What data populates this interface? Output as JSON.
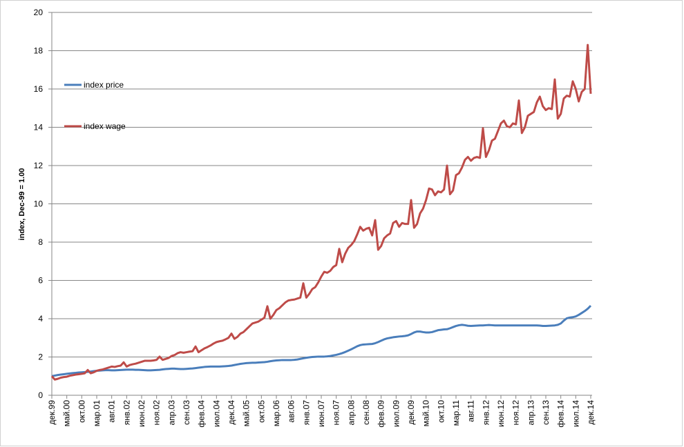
{
  "chart_data": {
    "type": "line",
    "y_label": "index, Dec-99 = 1.00",
    "categories": [
      "дек.99",
      null,
      null,
      null,
      null,
      "май.00",
      null,
      null,
      null,
      null,
      "окт.00",
      null,
      null,
      null,
      null,
      "мар.01",
      null,
      null,
      null,
      null,
      "авг.01",
      null,
      null,
      null,
      null,
      "янв.02",
      null,
      null,
      null,
      null,
      "июн.02",
      null,
      null,
      null,
      null,
      "ноя.02",
      null,
      null,
      null,
      null,
      "апр.03",
      null,
      null,
      null,
      null,
      "сен.03",
      null,
      null,
      null,
      null,
      "фев.04",
      null,
      null,
      null,
      null,
      "июл.04",
      null,
      null,
      null,
      null,
      "дек.04",
      null,
      null,
      null,
      null,
      "май.05",
      null,
      null,
      null,
      null,
      "окт.05",
      null,
      null,
      null,
      null,
      "мар.06",
      null,
      null,
      null,
      null,
      "авг.06",
      null,
      null,
      null,
      null,
      "янв.07",
      null,
      null,
      null,
      null,
      "июн.07",
      null,
      null,
      null,
      null,
      "ноя.07",
      null,
      null,
      null,
      null,
      "апр.08",
      null,
      null,
      null,
      null,
      "сен.08",
      null,
      null,
      null,
      null,
      "фев.09",
      null,
      null,
      null,
      null,
      "июл.09",
      null,
      null,
      null,
      null,
      "дек.09",
      null,
      null,
      null,
      null,
      "май.10",
      null,
      null,
      null,
      null,
      "окт.10",
      null,
      null,
      null,
      null,
      "мар.11",
      null,
      null,
      null,
      null,
      "авг.11",
      null,
      null,
      null,
      null,
      "янв.12",
      null,
      null,
      null,
      null,
      "июн.12",
      null,
      null,
      null,
      null,
      "ноя.12",
      null,
      null,
      null,
      null,
      "апр.13",
      null,
      null,
      null,
      null,
      "сен.13",
      null,
      null,
      null,
      null,
      "фев.14",
      null,
      null,
      null,
      null,
      "июл.14",
      null,
      null,
      null,
      null,
      "дек.14"
    ],
    "series": [
      {
        "name": "index price",
        "color": "#4a7ebb",
        "values": [
          1.0,
          1.03,
          1.06,
          1.08,
          1.1,
          1.12,
          1.14,
          1.16,
          1.17,
          1.19,
          1.2,
          1.21,
          1.22,
          1.24,
          1.26,
          1.28,
          1.29,
          1.3,
          1.31,
          1.31,
          1.3,
          1.3,
          1.31,
          1.32,
          1.33,
          1.34,
          1.34,
          1.34,
          1.33,
          1.33,
          1.32,
          1.31,
          1.3,
          1.3,
          1.31,
          1.32,
          1.33,
          1.35,
          1.37,
          1.38,
          1.39,
          1.39,
          1.38,
          1.37,
          1.37,
          1.38,
          1.39,
          1.4,
          1.42,
          1.44,
          1.46,
          1.48,
          1.49,
          1.5,
          1.5,
          1.5,
          1.5,
          1.51,
          1.52,
          1.53,
          1.55,
          1.58,
          1.61,
          1.64,
          1.66,
          1.68,
          1.69,
          1.7,
          1.7,
          1.71,
          1.72,
          1.73,
          1.75,
          1.78,
          1.8,
          1.82,
          1.83,
          1.84,
          1.84,
          1.84,
          1.84,
          1.85,
          1.87,
          1.9,
          1.93,
          1.96,
          1.98,
          2.0,
          2.01,
          2.02,
          2.02,
          2.02,
          2.03,
          2.05,
          2.08,
          2.11,
          2.15,
          2.2,
          2.26,
          2.33,
          2.4,
          2.48,
          2.56,
          2.62,
          2.65,
          2.66,
          2.67,
          2.68,
          2.72,
          2.78,
          2.85,
          2.92,
          2.97,
          3.0,
          3.03,
          3.05,
          3.07,
          3.08,
          3.1,
          3.13,
          3.2,
          3.28,
          3.33,
          3.33,
          3.3,
          3.28,
          3.28,
          3.3,
          3.35,
          3.4,
          3.42,
          3.44,
          3.45,
          3.5,
          3.56,
          3.62,
          3.66,
          3.68,
          3.66,
          3.63,
          3.62,
          3.63,
          3.64,
          3.65,
          3.65,
          3.66,
          3.67,
          3.66,
          3.65,
          3.65,
          3.65,
          3.65,
          3.65,
          3.65,
          3.65,
          3.65,
          3.65,
          3.65,
          3.65,
          3.65,
          3.65,
          3.65,
          3.65,
          3.64,
          3.62,
          3.62,
          3.63,
          3.64,
          3.65,
          3.68,
          3.75,
          3.9,
          4.02,
          4.06,
          4.08,
          4.12,
          4.2,
          4.3,
          4.4,
          4.52,
          4.68
        ]
      },
      {
        "name": "index wage",
        "color": "#be4b48",
        "values": [
          1.0,
          0.82,
          0.86,
          0.92,
          0.95,
          0.97,
          1.02,
          1.05,
          1.08,
          1.1,
          1.12,
          1.15,
          1.32,
          1.15,
          1.2,
          1.28,
          1.32,
          1.35,
          1.4,
          1.45,
          1.5,
          1.48,
          1.52,
          1.55,
          1.72,
          1.5,
          1.58,
          1.62,
          1.65,
          1.7,
          1.75,
          1.8,
          1.8,
          1.8,
          1.82,
          1.85,
          2.02,
          1.85,
          1.9,
          1.95,
          2.05,
          2.1,
          2.2,
          2.25,
          2.22,
          2.25,
          2.28,
          2.3,
          2.55,
          2.25,
          2.35,
          2.45,
          2.52,
          2.6,
          2.7,
          2.78,
          2.82,
          2.85,
          2.92,
          3.0,
          3.22,
          2.95,
          3.05,
          3.22,
          3.3,
          3.45,
          3.6,
          3.75,
          3.8,
          3.85,
          3.95,
          4.05,
          4.65,
          4.0,
          4.2,
          4.45,
          4.55,
          4.7,
          4.85,
          4.95,
          4.98,
          5.0,
          5.05,
          5.1,
          5.85,
          5.1,
          5.3,
          5.55,
          5.65,
          5.9,
          6.2,
          6.45,
          6.4,
          6.5,
          6.7,
          6.8,
          7.65,
          6.95,
          7.4,
          7.7,
          7.85,
          8.05,
          8.4,
          8.8,
          8.6,
          8.7,
          8.75,
          8.35,
          9.15,
          7.6,
          7.8,
          8.2,
          8.35,
          8.45,
          9.0,
          9.1,
          8.8,
          9.0,
          8.95,
          8.95,
          10.2,
          8.75,
          8.95,
          9.5,
          9.75,
          10.2,
          10.8,
          10.75,
          10.45,
          10.65,
          10.6,
          10.75,
          12.0,
          10.5,
          10.7,
          11.5,
          11.6,
          11.9,
          12.3,
          12.45,
          12.25,
          12.4,
          12.45,
          12.4,
          13.95,
          12.45,
          12.8,
          13.3,
          13.4,
          13.8,
          14.2,
          14.35,
          14.05,
          14.0,
          14.2,
          14.15,
          15.4,
          13.7,
          14.0,
          14.6,
          14.7,
          14.8,
          15.3,
          15.6,
          15.1,
          14.9,
          15.0,
          14.95,
          16.5,
          14.45,
          14.7,
          15.5,
          15.65,
          15.6,
          16.4,
          16.0,
          15.35,
          15.85,
          16.0,
          18.3,
          15.75
        ]
      }
    ],
    "ylim": [
      0,
      20
    ],
    "yticks": [
      0,
      2,
      4,
      6,
      8,
      10,
      12,
      14,
      16,
      18,
      20
    ],
    "grid": true,
    "legend": "left"
  }
}
